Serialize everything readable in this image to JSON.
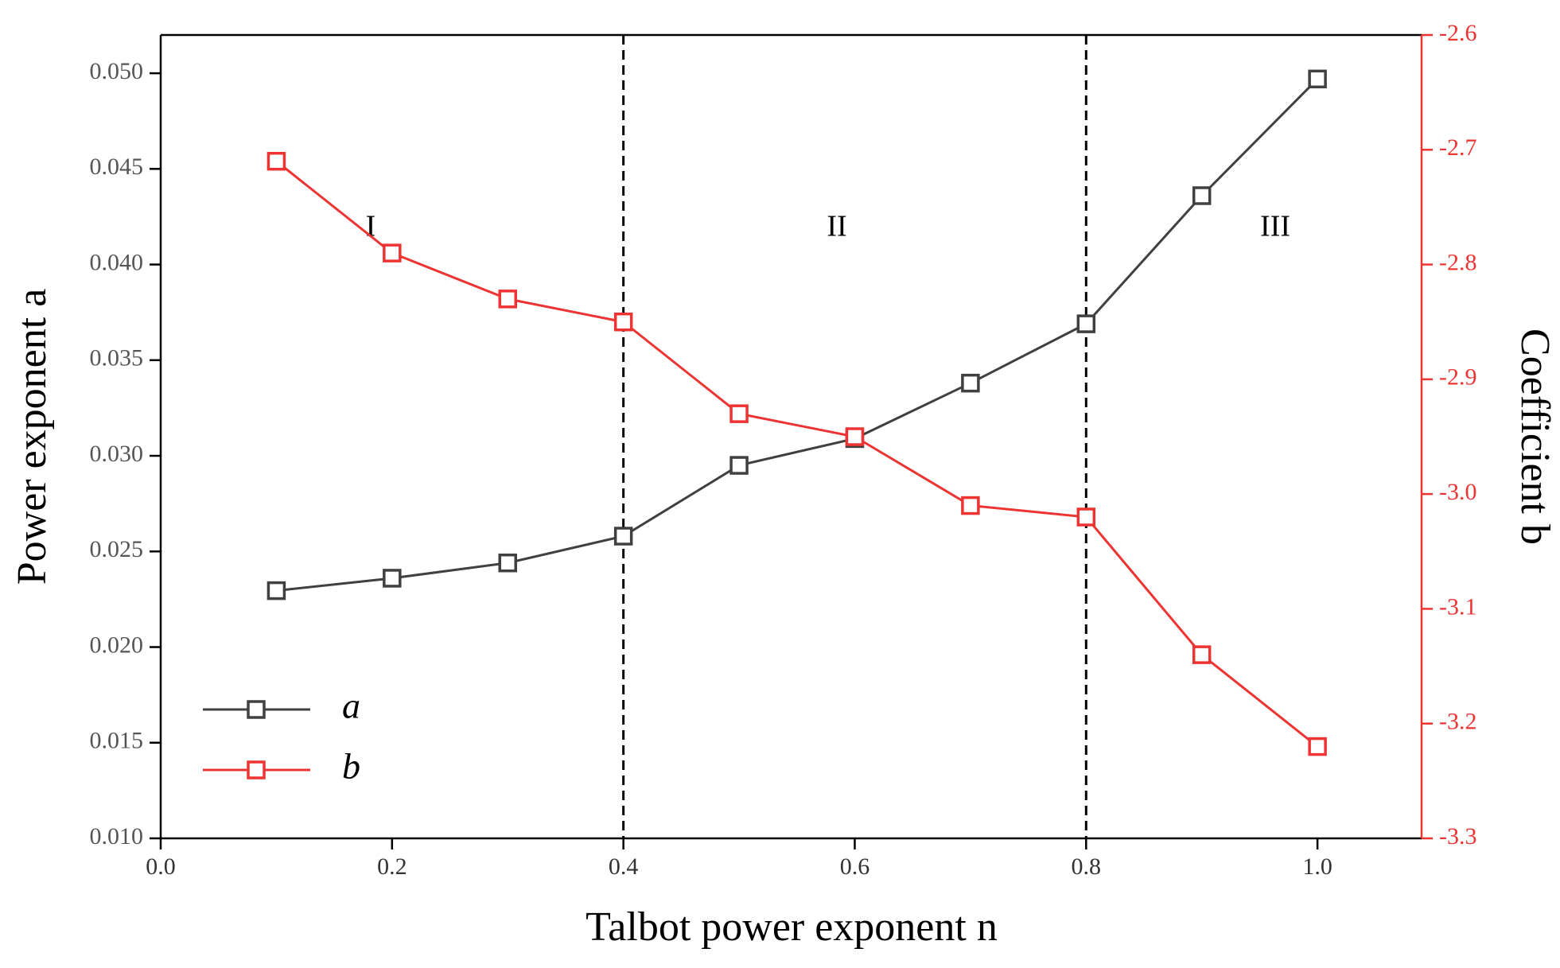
{
  "chart_data": {
    "type": "line",
    "x_label": "Talbot power exponent n",
    "y_label": "Power exponent a",
    "y2_label": "Coefficient b",
    "x": [
      0.1,
      0.2,
      0.3,
      0.4,
      0.5,
      0.6,
      0.7,
      0.8,
      0.9,
      1.0
    ],
    "series": [
      {
        "name": "a",
        "color": "#404040",
        "values": [
          0.02295,
          0.0236,
          0.0244,
          0.0258,
          0.0295,
          0.0309,
          0.0338,
          0.0369,
          0.0436,
          0.0497
        ]
      },
      {
        "name": "b",
        "color": "#ee3333",
        "axis": "y2",
        "values": [
          -2.71,
          -2.79,
          -2.83,
          -2.85,
          -2.93,
          -2.95,
          -3.01,
          -3.02,
          -3.14,
          -3.22
        ]
      }
    ],
    "xlim": [
      0,
      1.09
    ],
    "xticks": [
      {
        "value": 0,
        "label": "0.0"
      },
      0.2,
      0.4,
      0.6,
      0.8,
      {
        "value": 1.0,
        "label": "1.0"
      }
    ],
    "ylim": [
      0.01,
      0.052
    ],
    "yticks": [
      {
        "value": 0.01,
        "label": "0.010"
      },
      {
        "value": 0.015,
        "label": "0.015"
      },
      {
        "value": 0.02,
        "label": "0.020"
      },
      {
        "value": 0.025,
        "label": "0.025"
      },
      {
        "value": 0.03,
        "label": "0.030"
      },
      {
        "value": 0.035,
        "label": "0.035"
      },
      {
        "value": 0.04,
        "label": "0.040"
      },
      {
        "value": 0.045,
        "label": "0.045"
      },
      {
        "value": 0.05,
        "label": "0.050"
      }
    ],
    "y2lim": [
      -3.3,
      -2.6
    ],
    "y2ticks": [
      -3.3,
      -3.2,
      -3.1,
      {
        "value": -3.0,
        "label": "-3.0"
      },
      -2.9,
      -2.8,
      -2.7,
      -2.6
    ],
    "vlines": [
      0.4,
      0.8
    ],
    "annotations": [
      "I",
      "II",
      "III"
    ],
    "legend": "lower left"
  }
}
